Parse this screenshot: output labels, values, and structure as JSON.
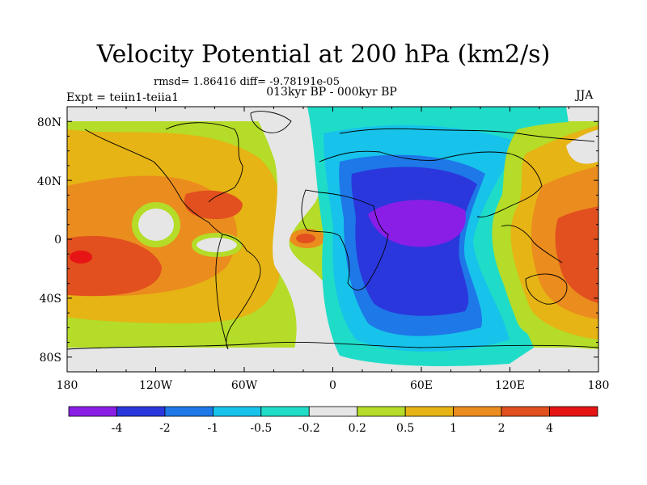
{
  "title": "Velocity Potential at 200 hPa (km2/s)",
  "stats": "rmsd= 1.86416 diff= -9.78191e-05",
  "subtitle": "013kyr BP - 000kyr BP",
  "left_label": "Expt = teiin1-teiia1",
  "right_label": "JJA",
  "map": {
    "lon_ticks": [
      "180",
      "120W",
      "60W",
      "0",
      "60E",
      "120E",
      "180"
    ],
    "lat_ticks": [
      "80N",
      "40N",
      "0",
      "40S",
      "80S"
    ]
  },
  "colorbar": {
    "colors": [
      "#8a1ee6",
      "#2a37dc",
      "#1e78e8",
      "#17c3ea",
      "#1fdcc8",
      "#e6e6e6",
      "#b4dc28",
      "#e6b414",
      "#eb8c1e",
      "#e1501e",
      "#e61414"
    ],
    "labels": [
      "-4",
      "-2",
      "-1",
      "-0.5",
      "-0.2",
      "0.2",
      "0.5",
      "1",
      "2",
      "4"
    ]
  }
}
